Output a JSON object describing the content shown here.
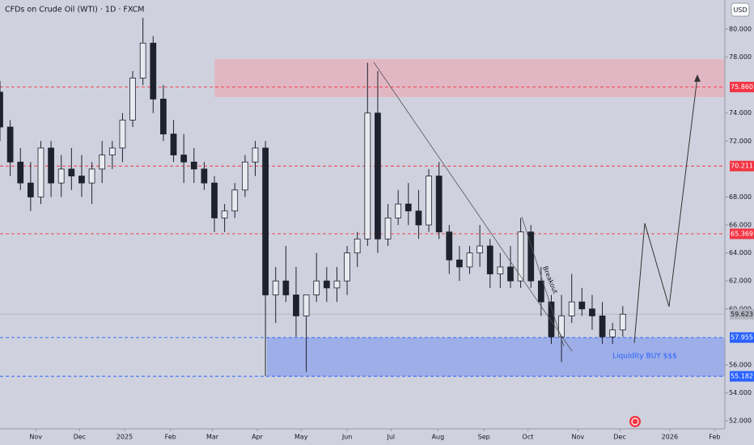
{
  "chart_data": {
    "type": "candlestick",
    "title": "CFDs on Crude Oil (WTI) · 1D · FXCM",
    "currency": "USD",
    "x": [
      0,
      1,
      2,
      3,
      4,
      5,
      6,
      7,
      8,
      9,
      10,
      11,
      12,
      13,
      14,
      15,
      16,
      17,
      18,
      19,
      20,
      21,
      22,
      23,
      24,
      25,
      26,
      27,
      28,
      29,
      30,
      31,
      32,
      33,
      34,
      35,
      36,
      37,
      38,
      39,
      40,
      41,
      42,
      43,
      44,
      45,
      46,
      47,
      48,
      49,
      50,
      51,
      52,
      53,
      54,
      55,
      56,
      57,
      58,
      59,
      60,
      61
    ],
    "open": [
      75.5,
      73,
      70.5,
      69,
      68,
      71.5,
      69,
      70,
      69.5,
      69,
      70,
      71,
      71.5,
      73.5,
      76.5,
      79,
      75,
      72.5,
      71,
      70.5,
      70,
      69,
      66.5,
      67,
      68.5,
      70.5,
      71.5,
      61,
      62,
      61,
      59.5,
      61,
      62,
      61.5,
      62,
      64,
      65,
      74,
      65,
      66.5,
      67.5,
      67,
      66,
      69.5,
      65.5,
      63.5,
      63,
      64,
      64.5,
      62.5,
      63,
      62,
      65.5,
      62,
      60.5,
      58,
      59.5,
      60.5,
      60,
      59.5,
      58,
      58.5
    ],
    "high": [
      76.3,
      73.5,
      71.5,
      70.5,
      72,
      72,
      71,
      71.5,
      71,
      70.5,
      72,
      72,
      74,
      77,
      80.8,
      79.5,
      76,
      73.5,
      72.5,
      71.5,
      70.5,
      69.5,
      67.5,
      69,
      71,
      72,
      72,
      63,
      64.5,
      63,
      61,
      64,
      63,
      63,
      64.5,
      65.5,
      77.6,
      77,
      67.5,
      68.5,
      69,
      68.5,
      70,
      70.5,
      66,
      64.5,
      64.5,
      66,
      65,
      64,
      64.5,
      66.5,
      66,
      63,
      61,
      61,
      62.5,
      61.5,
      61,
      60.5,
      59,
      60.2
    ],
    "low": [
      72,
      69.5,
      68.5,
      67,
      67.5,
      68,
      68,
      68.5,
      68,
      67.5,
      69,
      70,
      70.5,
      73,
      76,
      74,
      72,
      70.5,
      69,
      69,
      68.5,
      65.5,
      65.5,
      66.5,
      68,
      69.5,
      55.2,
      59,
      60.5,
      58,
      55.5,
      60.5,
      60.5,
      60.5,
      61,
      63,
      64.5,
      64,
      64.5,
      66,
      66,
      65,
      65.5,
      65,
      62.5,
      62,
      62.5,
      63,
      61.5,
      61.5,
      61.5,
      61.5,
      61.5,
      59.5,
      57.5,
      56.2,
      59,
      59.5,
      58.5,
      57.5,
      57.5,
      58
    ],
    "close": [
      73,
      70.5,
      69,
      68,
      71.5,
      69,
      70,
      69.5,
      69,
      70,
      71,
      71.5,
      73.5,
      76.5,
      79,
      75,
      72.5,
      71,
      70.5,
      70,
      69,
      66.5,
      67,
      68.5,
      70.5,
      71.5,
      61,
      62,
      61,
      59.5,
      61,
      62,
      61.5,
      62,
      64,
      65,
      74,
      65,
      66.5,
      67.5,
      67,
      66,
      69.5,
      65.5,
      63.5,
      63,
      64,
      64.5,
      62.5,
      63,
      62,
      65.5,
      62,
      60.5,
      58,
      59.5,
      60.5,
      60,
      59.5,
      58,
      58.5,
      59.623
    ],
    "up_color": "#e9eaf0",
    "down_color": "#1e222d",
    "xlim": [
      0,
      71
    ],
    "xticks": [
      {
        "value": 3.5,
        "label": "Nov"
      },
      {
        "value": 7.8,
        "label": "Dec"
      },
      {
        "value": 12.2,
        "label": "2025"
      },
      {
        "value": 16.7,
        "label": "Feb"
      },
      {
        "value": 20.8,
        "label": "Mar"
      },
      {
        "value": 25.2,
        "label": "Apr"
      },
      {
        "value": 29.5,
        "label": "May"
      },
      {
        "value": 34,
        "label": "Jun"
      },
      {
        "value": 38.3,
        "label": "Jul"
      },
      {
        "value": 42.9,
        "label": "Aug"
      },
      {
        "value": 47.4,
        "label": "Sep"
      },
      {
        "value": 51.7,
        "label": "Oct"
      },
      {
        "value": 56.6,
        "label": "Nov"
      },
      {
        "value": 60.7,
        "label": "Dec"
      },
      {
        "value": 65.6,
        "label": "2026"
      },
      {
        "value": 70,
        "label": "Feb"
      }
    ],
    "ylim": [
      51.43,
      82.08
    ],
    "yticks": [
      {
        "value": 52,
        "label": "52.000"
      },
      {
        "value": 54,
        "label": "54.000"
      },
      {
        "value": 56,
        "label": "56.000"
      },
      {
        "value": 60,
        "label": "60.000"
      },
      {
        "value": 62,
        "label": "62.000"
      },
      {
        "value": 64,
        "label": "64.000"
      },
      {
        "value": 66,
        "label": "66.000"
      },
      {
        "value": 68,
        "label": "68.000"
      },
      {
        "value": 72,
        "label": "72.000"
      },
      {
        "value": 74,
        "label": "74.000"
      },
      {
        "value": 78,
        "label": "78.000"
      },
      {
        "value": 80,
        "label": "80.000"
      }
    ],
    "levels": [
      {
        "value": 75.86,
        "label": "75.860",
        "color": "#f23645",
        "style": "dashed"
      },
      {
        "value": 70.211,
        "label": "70.211",
        "color": "#f23645",
        "style": "dashed"
      },
      {
        "value": 65.369,
        "label": "65.369",
        "color": "#f23645",
        "style": "dashed"
      },
      {
        "value": 59.623,
        "label": "59.623",
        "color": "#b2b5be",
        "style": "solid"
      },
      {
        "value": 57.955,
        "label": "57.955",
        "color": "#2962ff",
        "style": "dashed"
      },
      {
        "value": 55.182,
        "label": "55.182",
        "color": "#2962ff",
        "style": "dashed"
      }
    ],
    "annotations": [
      "Breakout",
      "Liquidity BUY $$$"
    ]
  }
}
